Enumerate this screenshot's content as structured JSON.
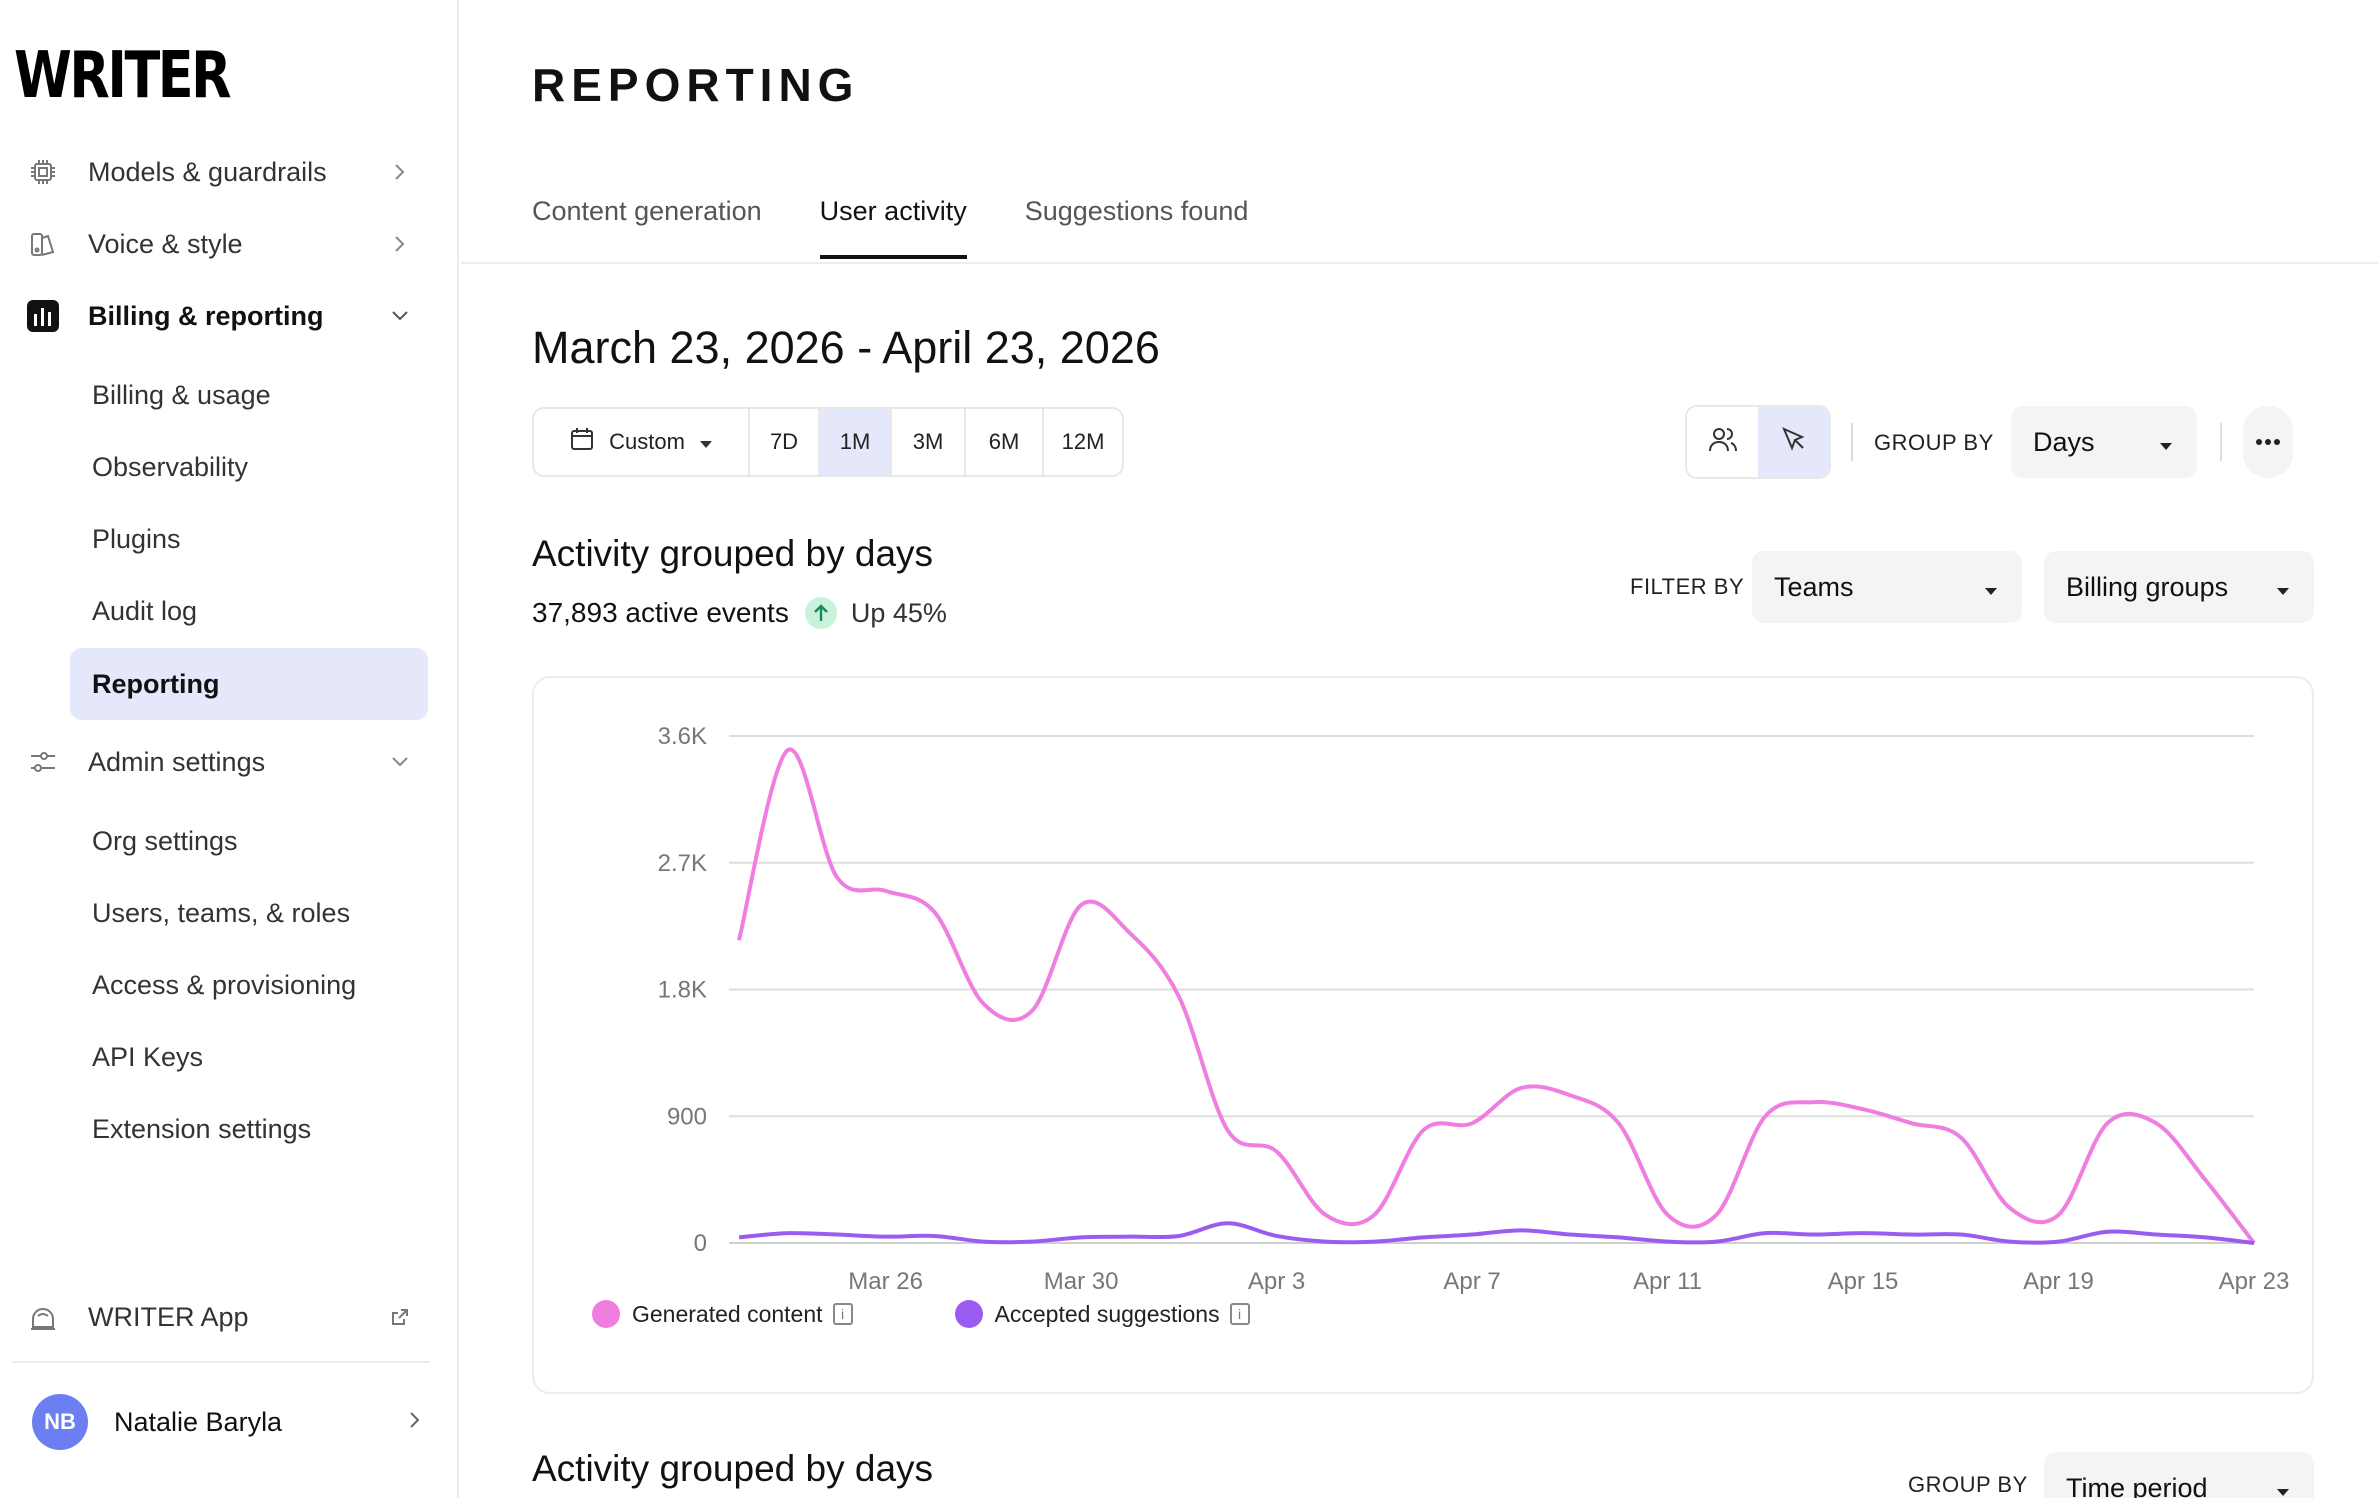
{
  "sidebar": {
    "logo": "WRITER",
    "items": [
      {
        "label": "Models & guardrails",
        "icon": "chip-icon"
      },
      {
        "label": "Voice & style",
        "icon": "voice-style-icon"
      },
      {
        "label": "Billing & reporting",
        "icon": "bar-chart-icon"
      },
      {
        "label": "Admin settings",
        "icon": "sliders-icon"
      }
    ],
    "billing_sub": [
      "Billing & usage",
      "Observability",
      "Plugins",
      "Audit log",
      "Reporting"
    ],
    "admin_sub": [
      "Org settings",
      "Users, teams, & roles",
      "Access & provisioning",
      "API Keys",
      "Extension settings"
    ],
    "app_link": "WRITER App",
    "user": {
      "initials": "NB",
      "name": "Natalie Baryla"
    }
  },
  "header": {
    "title": "REPORTING",
    "tabs": [
      "Content generation",
      "User activity",
      "Suggestions found"
    ],
    "active_tab": "User activity"
  },
  "date_range": "March 23, 2026 - April 23, 2026",
  "range_selector": {
    "custom_label": "Custom",
    "options": [
      "7D",
      "1M",
      "3M",
      "6M",
      "12M"
    ],
    "selected": "1M"
  },
  "controls": {
    "group_by_label": "GROUP BY",
    "group_by_value": "Days",
    "filter_by_label": "FILTER BY",
    "filter_teams": "Teams",
    "filter_billing": "Billing groups"
  },
  "activity_section": {
    "title": "Activity grouped by days",
    "events": "37,893 active events",
    "trend": "Up 45%"
  },
  "chart_data": {
    "type": "line",
    "x": [
      "Mar 23",
      "Mar 24",
      "Mar 25",
      "Mar 26",
      "Mar 27",
      "Mar 28",
      "Mar 29",
      "Mar 30",
      "Mar 31",
      "Apr 1",
      "Apr 2",
      "Apr 3",
      "Apr 4",
      "Apr 5",
      "Apr 6",
      "Apr 7",
      "Apr 8",
      "Apr 9",
      "Apr 10",
      "Apr 11",
      "Apr 12",
      "Apr 13",
      "Apr 14",
      "Apr 15",
      "Apr 16",
      "Apr 17",
      "Apr 18",
      "Apr 19",
      "Apr 20",
      "Apr 21",
      "Apr 22",
      "Apr 23"
    ],
    "x_ticks": [
      "Mar 26",
      "Mar 30",
      "Apr 3",
      "Apr 7",
      "Apr 11",
      "Apr 15",
      "Apr 19",
      "Apr 23"
    ],
    "y_ticks": [
      "0",
      "900",
      "1.8K",
      "2.7K",
      "3.6K"
    ],
    "ylim": [
      0,
      3600
    ],
    "grid": true,
    "legend_position": "bottom-left",
    "series": [
      {
        "name": "Generated content",
        "color": "#ef7ee0",
        "values": [
          2150,
          3500,
          2600,
          2500,
          2350,
          1700,
          1650,
          2400,
          2200,
          1750,
          800,
          650,
          200,
          200,
          800,
          850,
          1100,
          1050,
          850,
          200,
          200,
          900,
          1000,
          950,
          850,
          750,
          250,
          200,
          850,
          850,
          450,
          0
        ]
      },
      {
        "name": "Accepted suggestions",
        "color": "#9a5cf0",
        "values": [
          40,
          70,
          60,
          45,
          50,
          10,
          10,
          40,
          45,
          50,
          140,
          50,
          10,
          10,
          40,
          60,
          90,
          60,
          40,
          10,
          10,
          70,
          60,
          70,
          60,
          60,
          10,
          10,
          80,
          60,
          40,
          0
        ]
      }
    ]
  },
  "second_section": {
    "title": "Activity grouped by days",
    "group_by_label": "GROUP BY",
    "group_by_value": "Time period"
  }
}
